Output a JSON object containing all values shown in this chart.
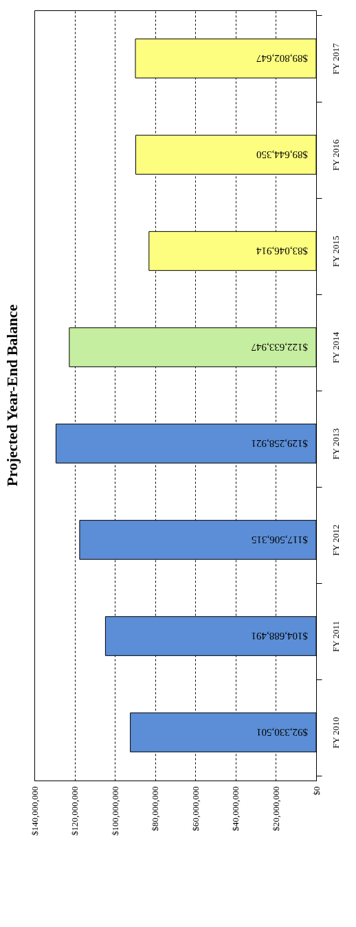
{
  "chart_data": {
    "type": "bar",
    "orientation": "horizontal",
    "title": "Projected Year-End Balance",
    "categories": [
      "FY 2017",
      "FY 2016",
      "FY 2015",
      "FY 2014",
      "FY 2013",
      "FY 2012",
      "FY 2011",
      "FY 2010"
    ],
    "values": [
      89802647,
      89644350,
      83046914,
      122633947,
      129258921,
      117506315,
      104688491,
      92330501
    ],
    "value_labels": [
      "$89,802,647",
      "$89,644,350",
      "$83,046,914",
      "$122,633,947",
      "$129,258,921",
      "$117,506,315",
      "$104,688,491",
      "$92,330,501"
    ],
    "colors": [
      "#fdfd80",
      "#fdfd80",
      "#fdfd80",
      "#c6eea0",
      "#5b8ed6",
      "#5b8ed6",
      "#5b8ed6",
      "#5b8ed6"
    ],
    "xlim": [
      140000000,
      0
    ],
    "xticks": [
      {
        "value": 140000000,
        "label": "$140,000,000"
      },
      {
        "value": 120000000,
        "label": "$120,000,000"
      },
      {
        "value": 100000000,
        "label": "$100,000,000"
      },
      {
        "value": 80000000,
        "label": "$80,000,000"
      },
      {
        "value": 60000000,
        "label": "$60,000,000"
      },
      {
        "value": 40000000,
        "label": "$40,000,000"
      },
      {
        "value": 20000000,
        "label": "$20,000,000"
      },
      {
        "value": 0,
        "label": "$0"
      }
    ],
    "grid": "x",
    "line_style": "dashed"
  }
}
